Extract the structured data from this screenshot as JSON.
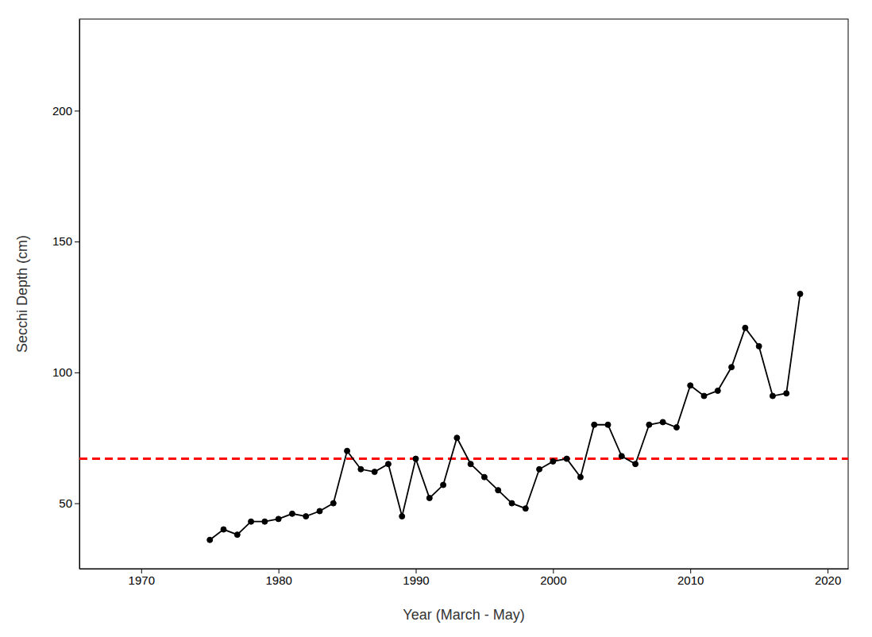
{
  "chart_data": {
    "type": "line",
    "xlabel": "Year (March - May)",
    "ylabel": "Secchi Depth (cm)",
    "x": [
      1975,
      1976,
      1977,
      1978,
      1979,
      1980,
      1981,
      1982,
      1983,
      1984,
      1985,
      1986,
      1987,
      1988,
      1989,
      1990,
      1991,
      1992,
      1993,
      1994,
      1995,
      1996,
      1997,
      1998,
      1999,
      2000,
      2001,
      2002,
      2003,
      2004,
      2005,
      2006,
      2007,
      2008,
      2009,
      2010,
      2011,
      2012,
      2013,
      2014,
      2015,
      2016,
      2017,
      2018
    ],
    "series": [
      {
        "values": [
          36,
          40,
          38,
          43,
          43,
          44,
          46,
          45,
          47,
          50,
          70,
          63,
          62,
          65,
          45,
          67,
          52,
          57,
          75,
          65,
          60,
          55,
          50,
          48,
          63,
          66,
          67,
          60,
          80,
          80,
          68,
          65,
          80,
          81,
          79,
          95,
          91,
          93,
          102,
          117,
          110,
          91,
          92,
          130
        ],
        "color": "#000000",
        "marker": "circle"
      }
    ],
    "reference_lines": [
      {
        "value": 67,
        "color": "#FF0000",
        "line_style": "dashed"
      }
    ],
    "xlim": [
      1965.5,
      2021.5
    ],
    "ylim": [
      25,
      235
    ],
    "xticks": [
      1970,
      1980,
      1990,
      2000,
      2010,
      2020
    ],
    "yticks": [
      50,
      100,
      150,
      200
    ],
    "grid": false
  }
}
